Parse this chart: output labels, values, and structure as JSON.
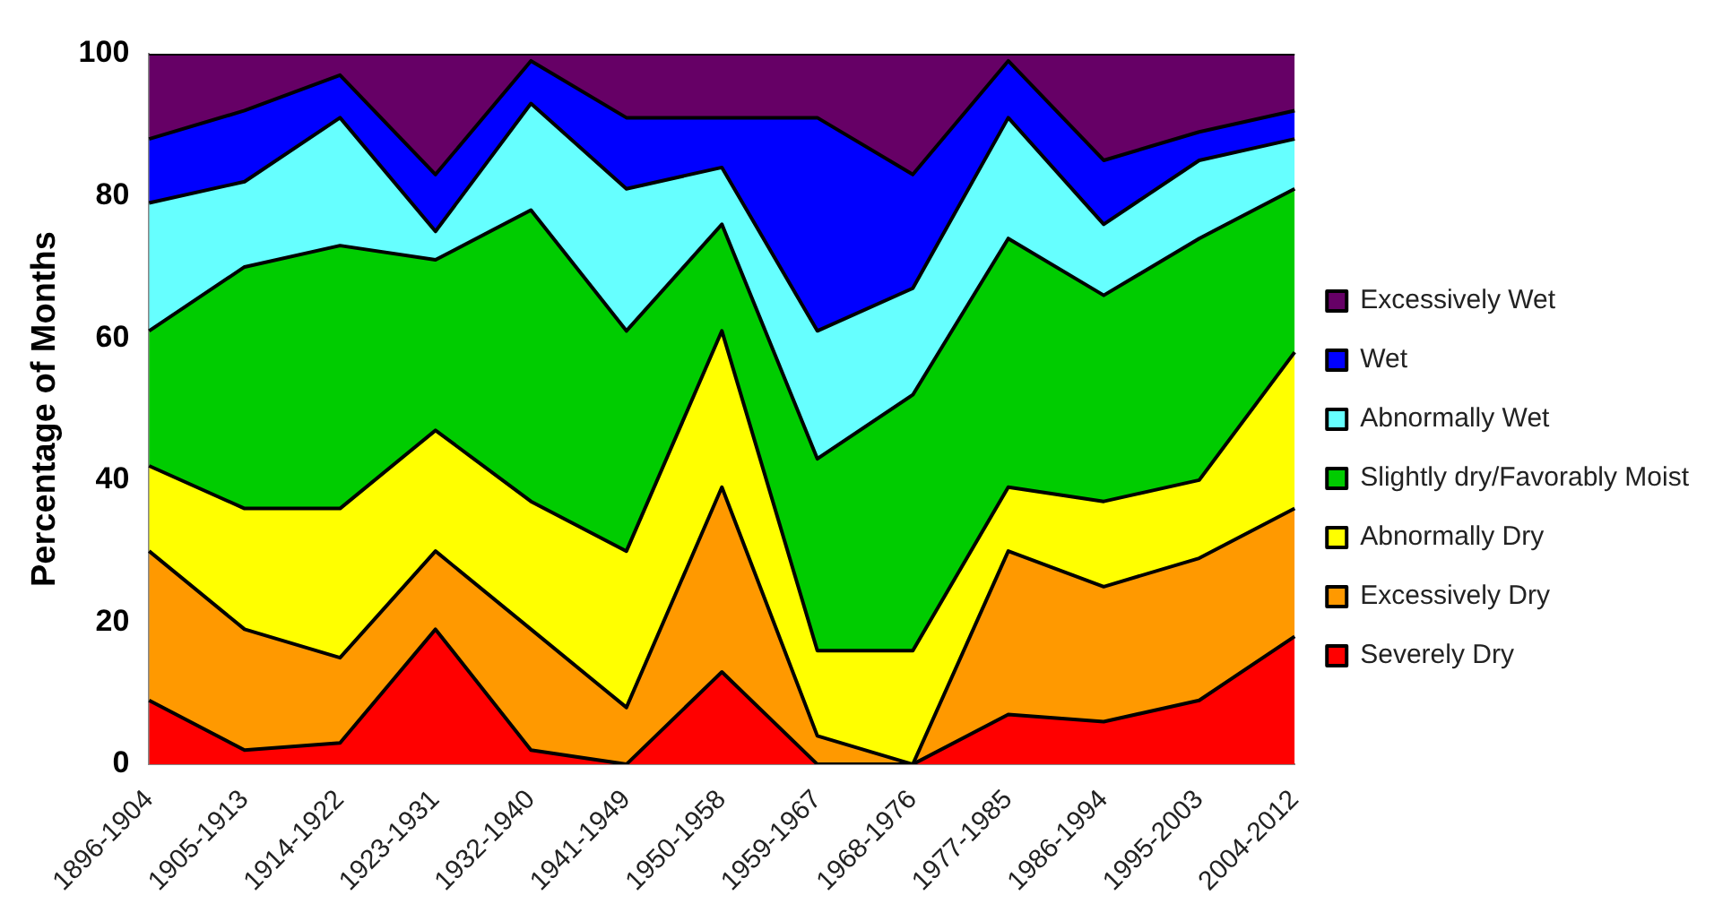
{
  "chart_data": {
    "type": "area",
    "stacked": true,
    "ylabel": "Percentage of Months",
    "categories": [
      "1896-1904",
      "1905-1913",
      "1914-1922",
      "1923-1931",
      "1932-1940",
      "1941-1949",
      "1950-1958",
      "1959-1967",
      "1968-1976",
      "1977-1985",
      "1986-1994",
      "1995-2003",
      "2004-2012"
    ],
    "series": [
      {
        "name": "Severely Dry",
        "color": "#ff0000",
        "values": [
          9,
          2,
          3,
          19,
          2,
          0,
          13,
          0,
          0,
          7,
          6,
          9,
          18
        ]
      },
      {
        "name": "Excessively Dry",
        "color": "#ff9900",
        "values": [
          21,
          17,
          12,
          11,
          17,
          8,
          26,
          4,
          0,
          23,
          19,
          20,
          18
        ]
      },
      {
        "name": "Abnormally Dry",
        "color": "#ffff00",
        "values": [
          12,
          17,
          21,
          17,
          18,
          22,
          22,
          12,
          16,
          9,
          12,
          11,
          22
        ]
      },
      {
        "name": "Slightly dry/Favorably Moist",
        "color": "#00cc00",
        "values": [
          19,
          34,
          37,
          24,
          41,
          31,
          15,
          27,
          36,
          35,
          29,
          34,
          23
        ]
      },
      {
        "name": "Abnormally Wet",
        "color": "#66ffff",
        "values": [
          18,
          12,
          18,
          4,
          15,
          20,
          8,
          18,
          15,
          17,
          10,
          11,
          7
        ]
      },
      {
        "name": "Wet",
        "color": "#0000ff",
        "values": [
          9,
          10,
          6,
          8,
          6,
          10,
          7,
          30,
          16,
          8,
          9,
          4,
          4
        ]
      },
      {
        "name": "Excessively Wet",
        "color": "#660066",
        "values": [
          12,
          8,
          3,
          17,
          1,
          9,
          9,
          9,
          17,
          1,
          15,
          11,
          8
        ]
      }
    ],
    "ylim": [
      0,
      100
    ],
    "yticks": [
      0,
      20,
      40,
      60,
      80,
      100
    ],
    "grid": false,
    "legend": "right"
  }
}
